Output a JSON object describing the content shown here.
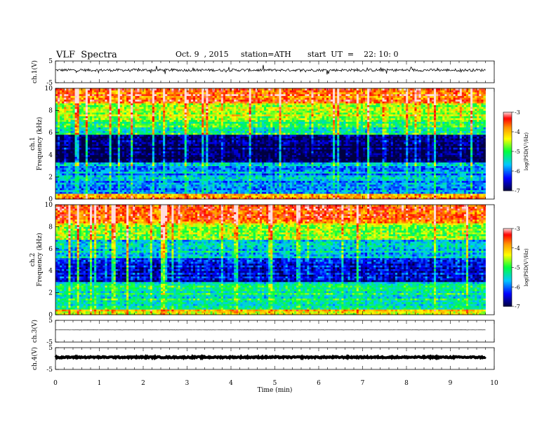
{
  "header": {
    "title": "VLF  Spectra",
    "date": "Oct. 9  , 2015",
    "station": "station=ATH",
    "start_ut": "start  UT  =    22: 10: 0"
  },
  "colorbar": {
    "label": "log(PSD(V²/Hz)",
    "ticks": [
      "-3",
      "-4",
      "-5",
      "-6",
      "-7"
    ],
    "colors": [
      "#ffffff",
      "#ff0000",
      "#ffaa00",
      "#ffff00",
      "#00ff00",
      "#00ffff",
      "#0000ff",
      "#000040"
    ]
  },
  "chart_data": [
    {
      "type": "line",
      "name": "ch1-waveform",
      "ylabel": "ch.1(V)",
      "ylim": [
        -5,
        5
      ],
      "yticks": [
        "5",
        "-5"
      ],
      "baseline": 0.8,
      "noise_amplitude": 0.6,
      "xlim": [
        0,
        10
      ]
    },
    {
      "type": "heatmap",
      "name": "ch1-spectrogram",
      "ylabel_channel": "ch.1",
      "ylabel": "Frequency  (kHz)",
      "ylim": [
        0,
        10
      ],
      "yticks": [
        "0",
        "2",
        "4",
        "6",
        "8",
        "10"
      ],
      "xlim": [
        0,
        9.8
      ],
      "bands_logPSD": [
        {
          "from": 0,
          "to": 0.5,
          "value": -3.8
        },
        {
          "from": 0.5,
          "to": 3.3,
          "value": -5.8
        },
        {
          "from": 3.3,
          "to": 5.8,
          "value": -6.9
        },
        {
          "from": 5.8,
          "to": 7.0,
          "value": -5.2
        },
        {
          "from": 7.0,
          "to": 8.6,
          "value": -4.6
        },
        {
          "from": 8.6,
          "to": 10,
          "value": -3.6
        }
      ]
    },
    {
      "type": "heatmap",
      "name": "ch2-spectrogram",
      "ylabel_channel": "ch.2",
      "ylabel": "Frequency  (kHz)",
      "ylim": [
        0,
        10
      ],
      "yticks": [
        "0",
        "2",
        "4",
        "6",
        "8",
        "10"
      ],
      "xlim": [
        0,
        9.8
      ],
      "bands_logPSD": [
        {
          "from": 0,
          "to": 0.5,
          "value": -4.2
        },
        {
          "from": 0.5,
          "to": 3.0,
          "value": -5.3
        },
        {
          "from": 3.0,
          "to": 5.2,
          "value": -6.5
        },
        {
          "from": 5.2,
          "to": 6.8,
          "value": -5.6
        },
        {
          "from": 6.8,
          "to": 8.4,
          "value": -4.6
        },
        {
          "from": 8.4,
          "to": 10,
          "value": -3.6
        }
      ]
    },
    {
      "type": "line",
      "name": "ch3-waveform",
      "ylabel": "ch.3(V)",
      "ylim": [
        -5,
        5
      ],
      "yticks": [
        "5",
        "-5"
      ],
      "baseline": 0.6,
      "noise_amplitude": 0.05,
      "xlim": [
        0,
        10
      ]
    },
    {
      "type": "line",
      "name": "ch4-waveform",
      "ylabel": "ch.4(V)",
      "ylim": [
        -5,
        5
      ],
      "yticks": [
        "5",
        "-5"
      ],
      "baseline": 0.6,
      "noise_amplitude": 0.3,
      "xlim": [
        0,
        10
      ]
    }
  ],
  "x_axis": {
    "label": "Time  (min)",
    "ticks": [
      "0",
      "1",
      "2",
      "3",
      "4",
      "5",
      "6",
      "7",
      "8",
      "9",
      "10"
    ],
    "xlim": [
      0,
      10
    ]
  }
}
